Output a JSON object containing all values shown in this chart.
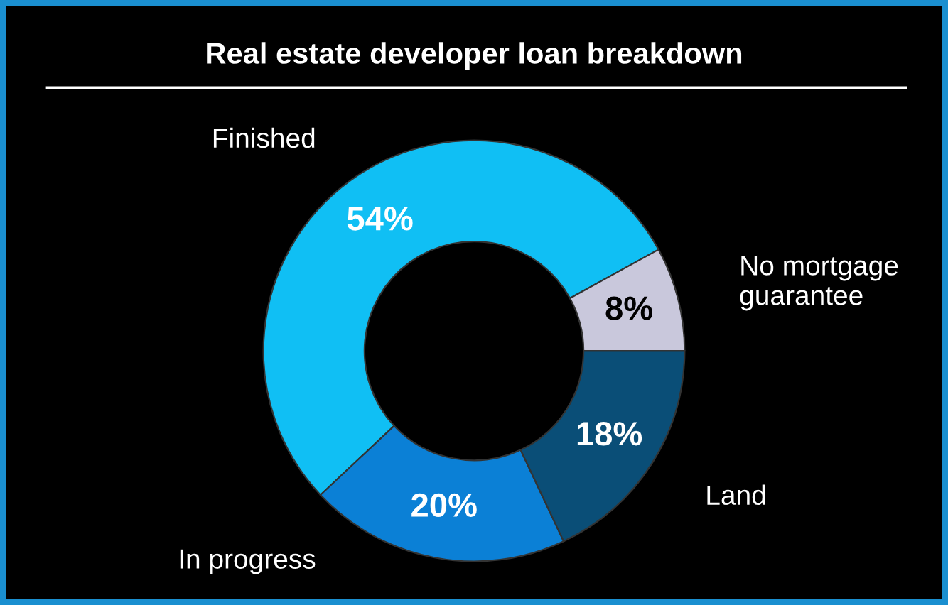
{
  "chart_data": {
    "type": "donut",
    "title": "Real estate developer loan breakdown",
    "categories": [
      "Finished",
      "In progress",
      "Land",
      "No mortgage\nguarantee"
    ],
    "values": [
      54,
      20,
      18,
      8
    ],
    "value_labels": [
      "54%",
      "20%",
      "18%",
      "8%"
    ],
    "colors": [
      "#10bff4",
      "#0b80d6",
      "#0a4e77",
      "#c9c8dc"
    ]
  }
}
